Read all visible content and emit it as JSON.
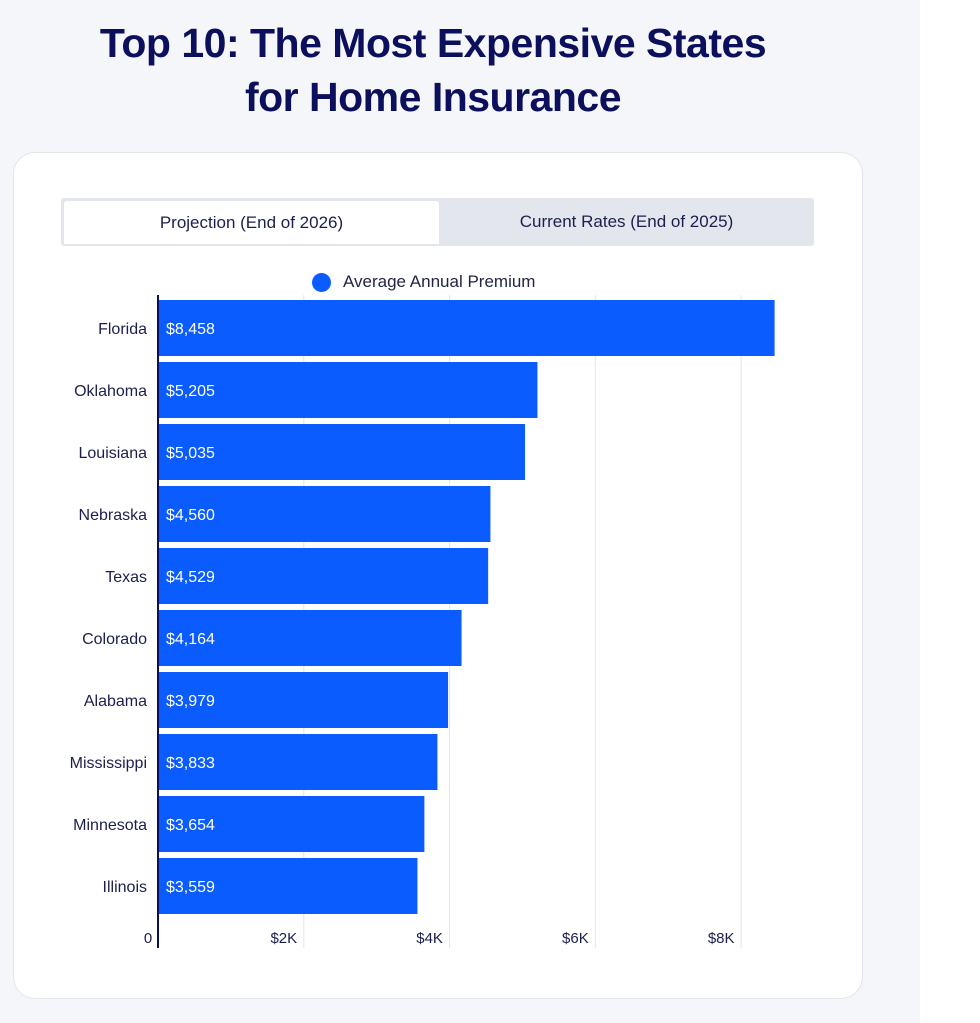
{
  "title_lines": [
    "Top 10: The Most Expensive States",
    "for Home Insurance"
  ],
  "tabs": [
    {
      "label": "Projection (End of 2026)",
      "active": true
    },
    {
      "label": "Current Rates (End of 2025)",
      "active": false
    }
  ],
  "colors": {
    "bar": "#0a5cff",
    "title": "#0b0f5c",
    "axis": "#0b0f5c",
    "grid": "#e3e5ec"
  },
  "chart_data": {
    "type": "bar",
    "orientation": "horizontal",
    "title": "Top 10: The Most Expensive States for Home Insurance",
    "legend": [
      "Average Annual Premium"
    ],
    "legend_position": "top",
    "categories": [
      "Florida",
      "Oklahoma",
      "Louisiana",
      "Nebraska",
      "Texas",
      "Colorado",
      "Alabama",
      "Mississippi",
      "Minnesota",
      "Illinois"
    ],
    "values": [
      8458,
      5205,
      5035,
      4560,
      4529,
      4164,
      3979,
      3833,
      3654,
      3559
    ],
    "value_labels": [
      "$8,458",
      "$5,205",
      "$5,035",
      "$4,560",
      "$4,529",
      "$4,164",
      "$3,979",
      "$3,833",
      "$3,654",
      "$3,559"
    ],
    "xlim": [
      0,
      8700
    ],
    "x_ticks": [
      0,
      2000,
      4000,
      6000,
      8000
    ],
    "x_tick_labels": [
      "0",
      "$2K",
      "$4K",
      "$6K",
      "$8K"
    ],
    "xlabel": "",
    "ylabel": "",
    "grid": true
  }
}
